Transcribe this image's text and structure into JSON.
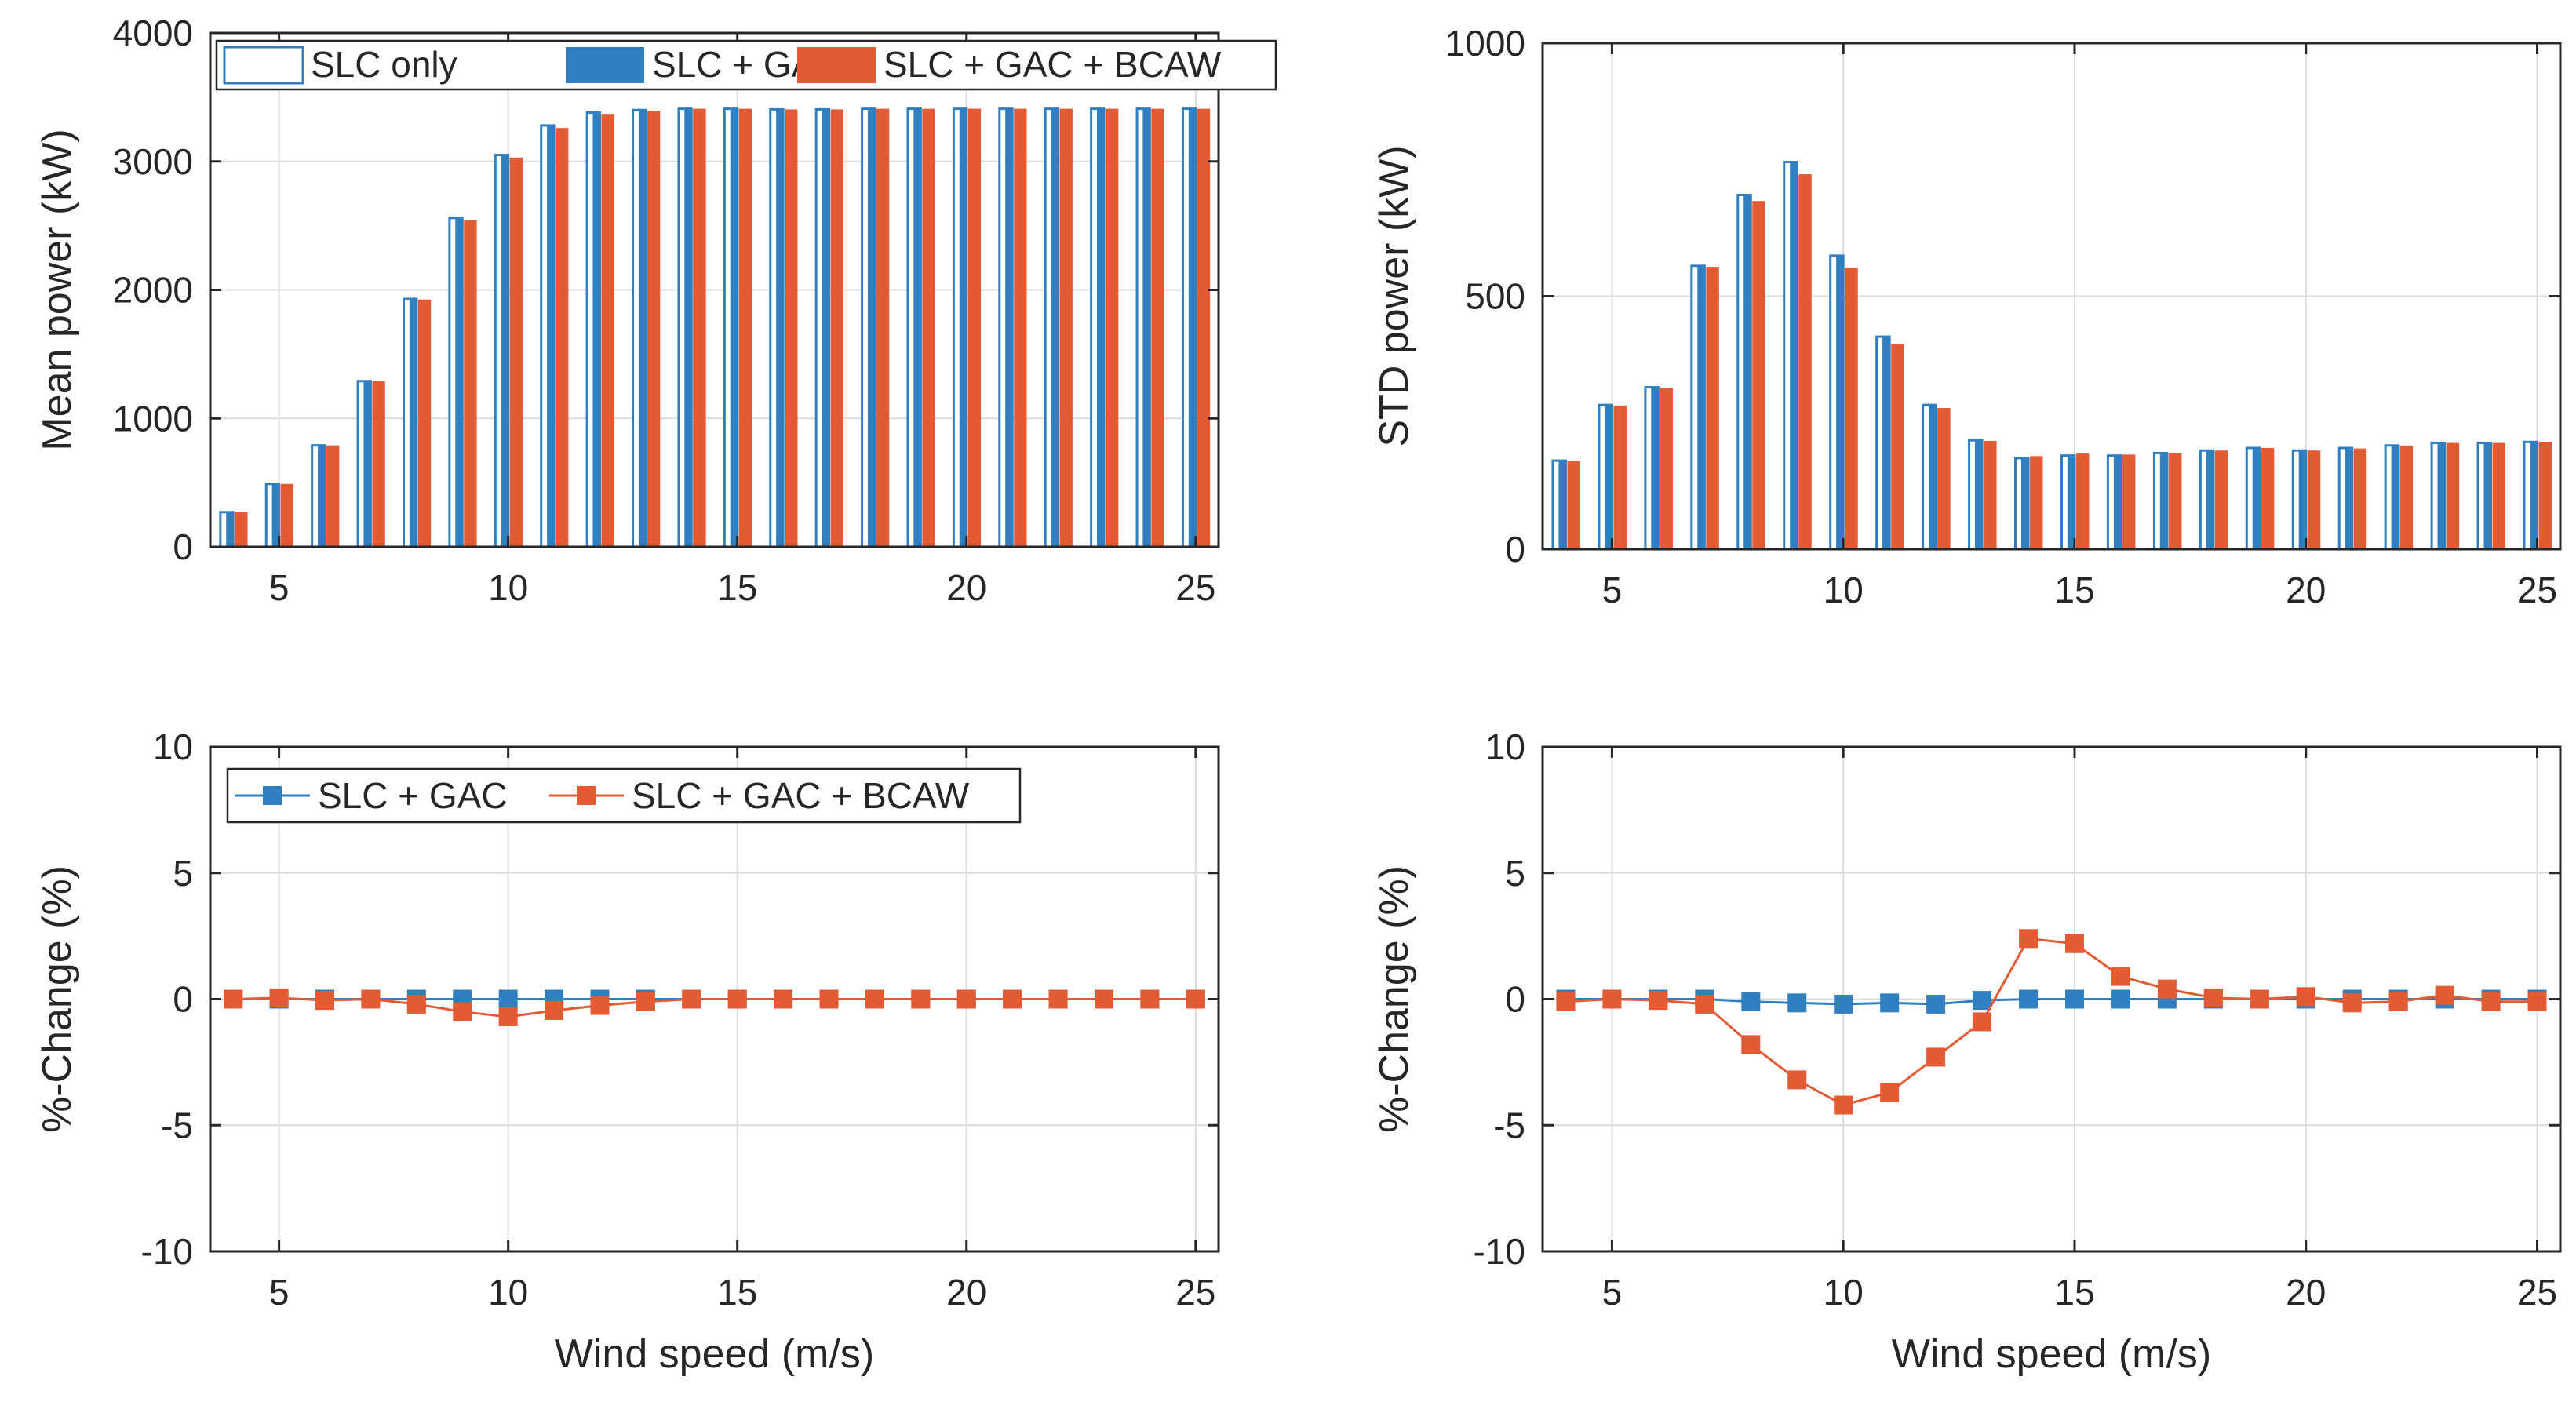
{
  "colors": {
    "blue": "#2f7fc1",
    "orange": "#e45a33",
    "axis": "#262626",
    "grid": "#dcdcdc"
  },
  "chart_data": [
    {
      "id": "mean-power",
      "type": "bar",
      "title": "",
      "xlabel": "",
      "ylabel": "Mean power (kW)",
      "xlim": [
        3.5,
        25.5
      ],
      "ylim": [
        0,
        4000
      ],
      "xticks": [
        5,
        10,
        15,
        20,
        25
      ],
      "yticks": [
        0,
        1000,
        2000,
        3000,
        4000
      ],
      "grid": true,
      "legend": "top-left",
      "x": [
        4,
        5,
        6,
        7,
        8,
        9,
        10,
        11,
        12,
        13,
        14,
        15,
        16,
        17,
        18,
        19,
        20,
        21,
        22,
        23,
        24,
        25
      ],
      "series": [
        {
          "name": "SLC only",
          "style": "outline",
          "values": [
            270,
            490,
            790,
            1290,
            1930,
            2560,
            3050,
            3280,
            3380,
            3400,
            3410,
            3410,
            3405,
            3405,
            3410,
            3410,
            3410,
            3410,
            3410,
            3410,
            3410,
            3410
          ]
        },
        {
          "name": "SLC + GAC",
          "style": "blue",
          "values": [
            270,
            490,
            790,
            1290,
            1930,
            2560,
            3050,
            3280,
            3380,
            3400,
            3410,
            3410,
            3405,
            3405,
            3410,
            3410,
            3410,
            3410,
            3410,
            3410,
            3410,
            3410
          ]
        },
        {
          "name": "SLC + GAC + BCAW",
          "style": "orange",
          "values": [
            270,
            490,
            790,
            1290,
            1925,
            2545,
            3030,
            3260,
            3370,
            3395,
            3410,
            3410,
            3405,
            3405,
            3410,
            3410,
            3410,
            3410,
            3410,
            3410,
            3410,
            3410
          ]
        }
      ]
    },
    {
      "id": "std-power",
      "type": "bar",
      "title": "",
      "xlabel": "",
      "ylabel": "STD power (kW)",
      "xlim": [
        3.5,
        25.5
      ],
      "ylim": [
        0,
        1000
      ],
      "xticks": [
        5,
        10,
        15,
        20,
        25
      ],
      "yticks": [
        0,
        500,
        1000
      ],
      "grid": true,
      "x": [
        4,
        5,
        6,
        7,
        8,
        9,
        10,
        11,
        12,
        13,
        14,
        15,
        16,
        17,
        18,
        19,
        20,
        21,
        22,
        23,
        24,
        25
      ],
      "series": [
        {
          "name": "SLC only",
          "style": "outline",
          "values": [
            175,
            285,
            320,
            560,
            700,
            765,
            580,
            420,
            285,
            215,
            180,
            185,
            185,
            190,
            195,
            200,
            195,
            200,
            205,
            210,
            210,
            212
          ]
        },
        {
          "name": "SLC + GAC",
          "style": "blue",
          "values": [
            175,
            285,
            320,
            560,
            700,
            765,
            580,
            420,
            285,
            215,
            180,
            185,
            185,
            190,
            195,
            200,
            195,
            200,
            205,
            210,
            210,
            212
          ]
        },
        {
          "name": "SLC + GAC + BCAW",
          "style": "orange",
          "values": [
            174,
            284,
            319,
            558,
            688,
            741,
            556,
            405,
            279,
            214,
            184,
            189,
            187,
            190,
            195,
            200,
            195,
            199,
            205,
            210,
            210,
            212
          ]
        }
      ]
    },
    {
      "id": "mean-change",
      "type": "line",
      "title": "",
      "xlabel": "Wind speed (m/s)",
      "ylabel": "%-Change (%)",
      "xlim": [
        3.5,
        25.5
      ],
      "ylim": [
        -10,
        10
      ],
      "xticks": [
        5,
        10,
        15,
        20,
        25
      ],
      "yticks": [
        -10,
        -5,
        0,
        5,
        10
      ],
      "grid": true,
      "legend": "top-left",
      "x": [
        4,
        5,
        6,
        7,
        8,
        9,
        10,
        11,
        12,
        13,
        14,
        15,
        16,
        17,
        18,
        19,
        20,
        21,
        22,
        23,
        24,
        25
      ],
      "series": [
        {
          "name": "SLC + GAC",
          "style": "blue",
          "values": [
            0,
            0,
            0,
            0,
            0,
            0,
            0,
            0,
            0,
            0,
            0,
            0,
            0,
            0,
            0,
            0,
            0,
            0,
            0,
            0,
            0,
            0
          ]
        },
        {
          "name": "SLC + GAC + BCAW",
          "style": "orange",
          "values": [
            0,
            0.05,
            -0.05,
            0,
            -0.2,
            -0.5,
            -0.7,
            -0.45,
            -0.25,
            -0.1,
            0,
            0,
            0,
            0,
            0,
            0,
            0,
            0,
            0,
            0,
            0,
            0
          ]
        }
      ]
    },
    {
      "id": "std-change",
      "type": "line",
      "title": "",
      "xlabel": "Wind speed (m/s)",
      "ylabel": "%-Change (%)",
      "xlim": [
        3.5,
        25.5
      ],
      "ylim": [
        -10,
        10
      ],
      "xticks": [
        5,
        10,
        15,
        20,
        25
      ],
      "yticks": [
        -10,
        -5,
        0,
        5,
        10
      ],
      "grid": true,
      "x": [
        4,
        5,
        6,
        7,
        8,
        9,
        10,
        11,
        12,
        13,
        14,
        15,
        16,
        17,
        18,
        19,
        20,
        21,
        22,
        23,
        24,
        25
      ],
      "series": [
        {
          "name": "SLC + GAC",
          "style": "blue",
          "values": [
            0,
            0,
            0,
            0,
            -0.1,
            -0.15,
            -0.2,
            -0.15,
            -0.2,
            -0.05,
            0,
            0,
            0,
            0,
            0,
            0,
            0,
            0,
            0,
            0,
            0,
            0
          ]
        },
        {
          "name": "SLC + GAC + BCAW",
          "style": "orange",
          "values": [
            -0.1,
            0,
            -0.05,
            -0.2,
            -1.8,
            -3.2,
            -4.2,
            -3.7,
            -2.3,
            -0.9,
            2.4,
            2.2,
            0.9,
            0.4,
            0.05,
            0,
            0.1,
            -0.15,
            -0.1,
            0.15,
            -0.1,
            -0.1
          ]
        }
      ]
    }
  ]
}
